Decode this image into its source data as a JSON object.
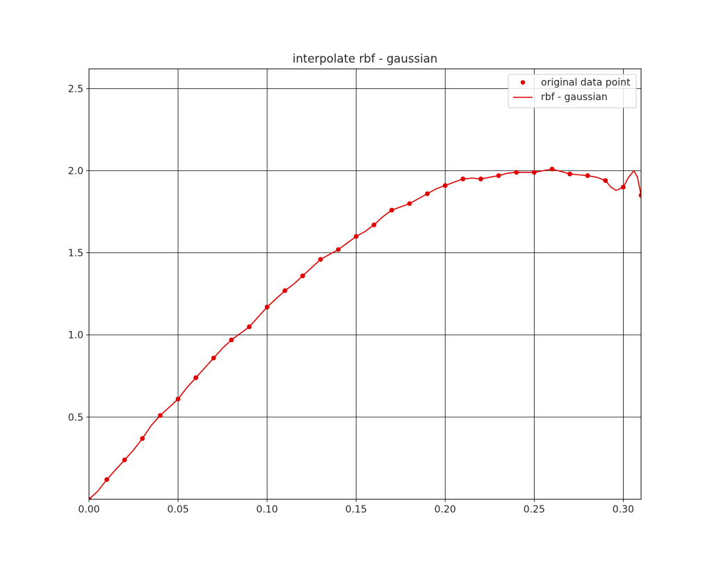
{
  "chart_data": {
    "type": "line",
    "title": "interpolate rbf - gaussian",
    "xlabel": "",
    "ylabel": "",
    "xlim": [
      0.0,
      0.31
    ],
    "ylim": [
      0.0,
      2.62
    ],
    "xticks": [
      0.0,
      0.05,
      0.1,
      0.15,
      0.2,
      0.25,
      0.3
    ],
    "xtick_labels": [
      "0.00",
      "0.05",
      "0.10",
      "0.15",
      "0.20",
      "0.25",
      "0.30"
    ],
    "yticks": [
      0.5,
      1.0,
      1.5,
      2.0,
      2.5
    ],
    "ytick_labels": [
      "0.5",
      "1.0",
      "1.5",
      "2.0",
      "2.5"
    ],
    "grid": true,
    "grid_color": "#000000",
    "legend_position": "top-right",
    "series": [
      {
        "name": "original data point",
        "kind": "scatter",
        "color": "#e00000",
        "x": [
          0.0,
          0.01,
          0.02,
          0.03,
          0.04,
          0.05,
          0.06,
          0.07,
          0.08,
          0.09,
          0.1,
          0.11,
          0.12,
          0.13,
          0.14,
          0.15,
          0.16,
          0.17,
          0.18,
          0.19,
          0.2,
          0.21,
          0.22,
          0.23,
          0.24,
          0.25,
          0.26,
          0.27,
          0.28,
          0.29,
          0.3,
          0.31
        ],
        "y": [
          0.0,
          0.12,
          0.24,
          0.37,
          0.51,
          0.61,
          0.74,
          0.86,
          0.97,
          1.05,
          1.17,
          1.27,
          1.36,
          1.46,
          1.52,
          1.6,
          1.67,
          1.76,
          1.8,
          1.86,
          1.91,
          1.95,
          1.95,
          1.97,
          1.99,
          1.99,
          2.01,
          1.98,
          1.97,
          1.94,
          1.9,
          1.85
        ]
      },
      {
        "name": "rbf - gaussian",
        "kind": "line",
        "color": "#e00000",
        "x": [
          0.0,
          0.005,
          0.01,
          0.015,
          0.02,
          0.025,
          0.03,
          0.035,
          0.04,
          0.045,
          0.05,
          0.055,
          0.06,
          0.065,
          0.07,
          0.075,
          0.08,
          0.085,
          0.09,
          0.095,
          0.1,
          0.105,
          0.11,
          0.115,
          0.12,
          0.125,
          0.13,
          0.135,
          0.14,
          0.145,
          0.15,
          0.155,
          0.16,
          0.165,
          0.17,
          0.175,
          0.18,
          0.185,
          0.19,
          0.195,
          0.2,
          0.205,
          0.21,
          0.215,
          0.22,
          0.225,
          0.23,
          0.235,
          0.24,
          0.245,
          0.25,
          0.255,
          0.26,
          0.265,
          0.27,
          0.275,
          0.28,
          0.285,
          0.29,
          0.293,
          0.296,
          0.3,
          0.303,
          0.306,
          0.308,
          0.31
        ],
        "y": [
          0.0,
          0.05,
          0.12,
          0.18,
          0.24,
          0.3,
          0.37,
          0.45,
          0.51,
          0.56,
          0.61,
          0.68,
          0.74,
          0.8,
          0.86,
          0.92,
          0.97,
          1.01,
          1.05,
          1.11,
          1.17,
          1.22,
          1.27,
          1.31,
          1.36,
          1.41,
          1.46,
          1.49,
          1.52,
          1.56,
          1.6,
          1.63,
          1.67,
          1.72,
          1.76,
          1.78,
          1.8,
          1.83,
          1.86,
          1.89,
          1.91,
          1.93,
          1.95,
          1.955,
          1.95,
          1.96,
          1.97,
          1.985,
          1.99,
          1.99,
          1.99,
          2.0,
          2.01,
          1.995,
          1.98,
          1.975,
          1.97,
          1.96,
          1.94,
          1.9,
          1.88,
          1.9,
          1.96,
          2.0,
          1.96,
          1.85
        ]
      }
    ]
  }
}
